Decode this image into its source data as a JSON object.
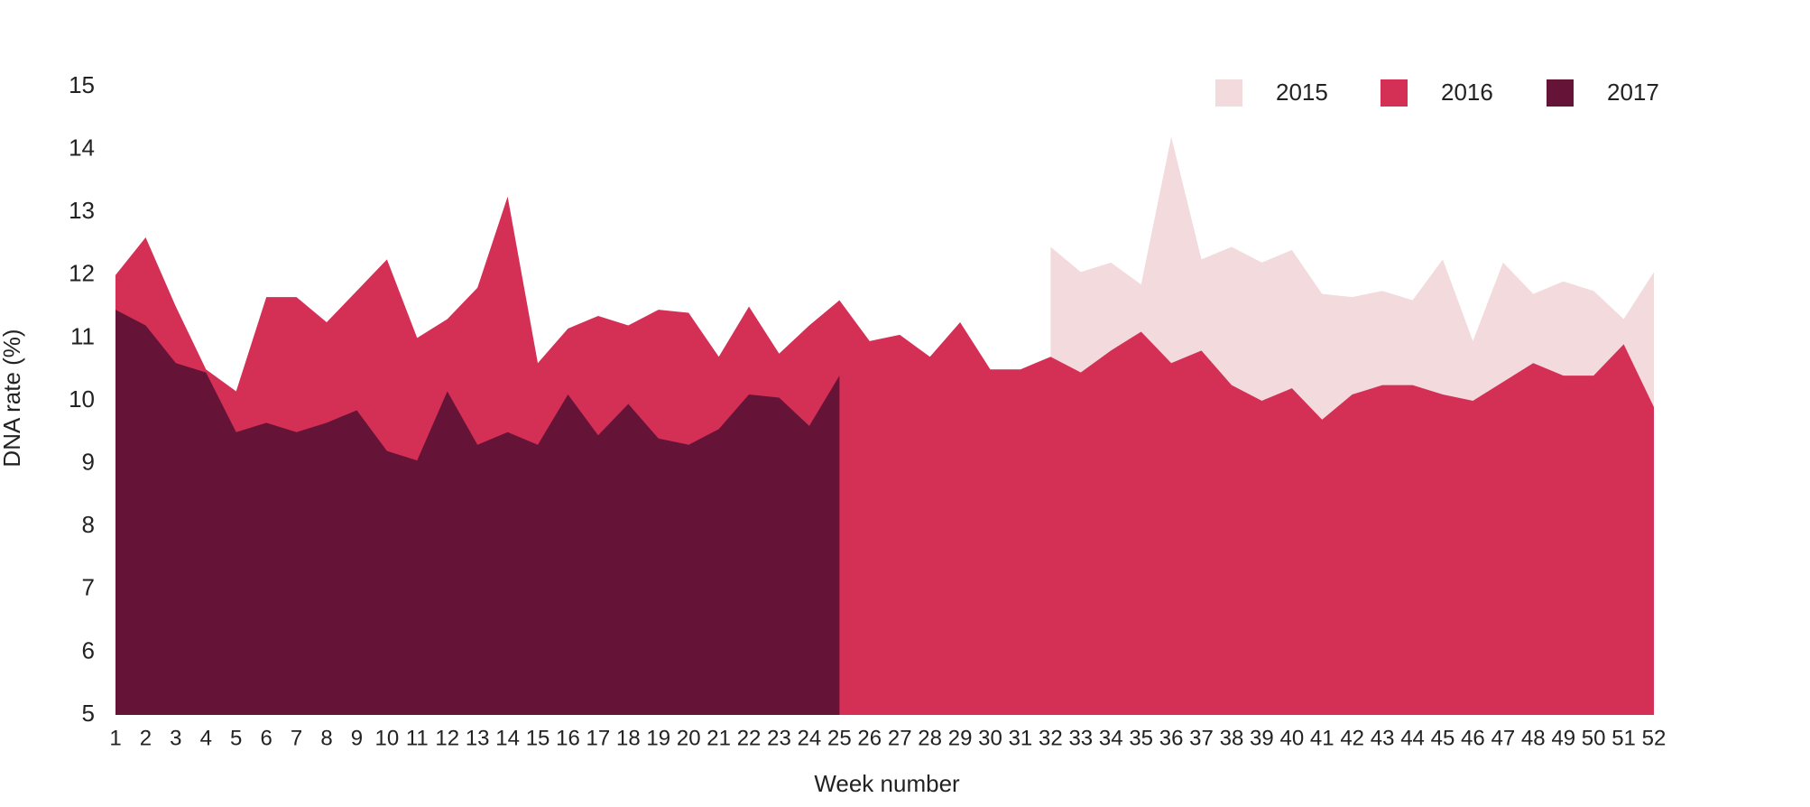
{
  "chart_data": {
    "type": "area",
    "xlabel": "Week number",
    "ylabel": "DNA rate (%)",
    "x": [
      1,
      2,
      3,
      4,
      5,
      6,
      7,
      8,
      9,
      10,
      11,
      12,
      13,
      14,
      15,
      16,
      17,
      18,
      19,
      20,
      21,
      22,
      23,
      24,
      25,
      26,
      27,
      28,
      29,
      30,
      31,
      32,
      33,
      34,
      35,
      36,
      37,
      38,
      39,
      40,
      41,
      42,
      43,
      44,
      45,
      46,
      47,
      48,
      49,
      50,
      51,
      52
    ],
    "xlim": [
      1,
      52
    ],
    "ylim": [
      5,
      15
    ],
    "yticks": [
      5,
      6,
      7,
      8,
      9,
      10,
      11,
      12,
      13,
      14,
      15
    ],
    "grid": false,
    "legend": "top-right",
    "series": [
      {
        "name": "2015",
        "color": "#f2dadd",
        "values": [
          null,
          null,
          null,
          null,
          null,
          null,
          null,
          null,
          null,
          null,
          null,
          null,
          null,
          null,
          null,
          null,
          null,
          null,
          null,
          null,
          null,
          null,
          null,
          null,
          null,
          null,
          null,
          null,
          null,
          null,
          null,
          12.45,
          12.05,
          12.2,
          11.85,
          14.2,
          12.25,
          12.45,
          12.2,
          12.4,
          11.7,
          11.65,
          11.75,
          11.6,
          12.25,
          10.95,
          12.2,
          11.7,
          11.9,
          11.75,
          11.3,
          12.05
        ]
      },
      {
        "name": "2016",
        "color": "#d42f55",
        "values": [
          12.0,
          12.6,
          11.5,
          10.5,
          10.15,
          11.65,
          11.65,
          11.25,
          11.75,
          12.25,
          11.0,
          11.3,
          11.8,
          13.25,
          10.6,
          11.15,
          11.35,
          11.2,
          11.45,
          11.4,
          10.7,
          11.5,
          10.75,
          11.2,
          11.6,
          10.95,
          11.05,
          10.7,
          11.25,
          10.5,
          10.5,
          10.7,
          10.45,
          10.8,
          11.1,
          10.6,
          10.8,
          10.25,
          10.0,
          10.2,
          9.7,
          10.1,
          10.25,
          10.25,
          10.1,
          10.0,
          10.3,
          10.6,
          10.4,
          10.4,
          10.9,
          9.9
        ]
      },
      {
        "name": "2017",
        "color": "#661338",
        "values": [
          11.45,
          11.2,
          10.6,
          10.45,
          9.5,
          9.65,
          9.5,
          9.65,
          9.85,
          9.2,
          9.05,
          10.15,
          9.3,
          9.5,
          9.3,
          10.1,
          9.45,
          9.95,
          9.4,
          9.3,
          9.55,
          10.1,
          10.05,
          9.6,
          10.4,
          null,
          null,
          null,
          null,
          null,
          null,
          null,
          null,
          null,
          null,
          null,
          null,
          null,
          null,
          null,
          null,
          null,
          null,
          null,
          null,
          null,
          null,
          null,
          null,
          null,
          null,
          null
        ]
      }
    ]
  }
}
